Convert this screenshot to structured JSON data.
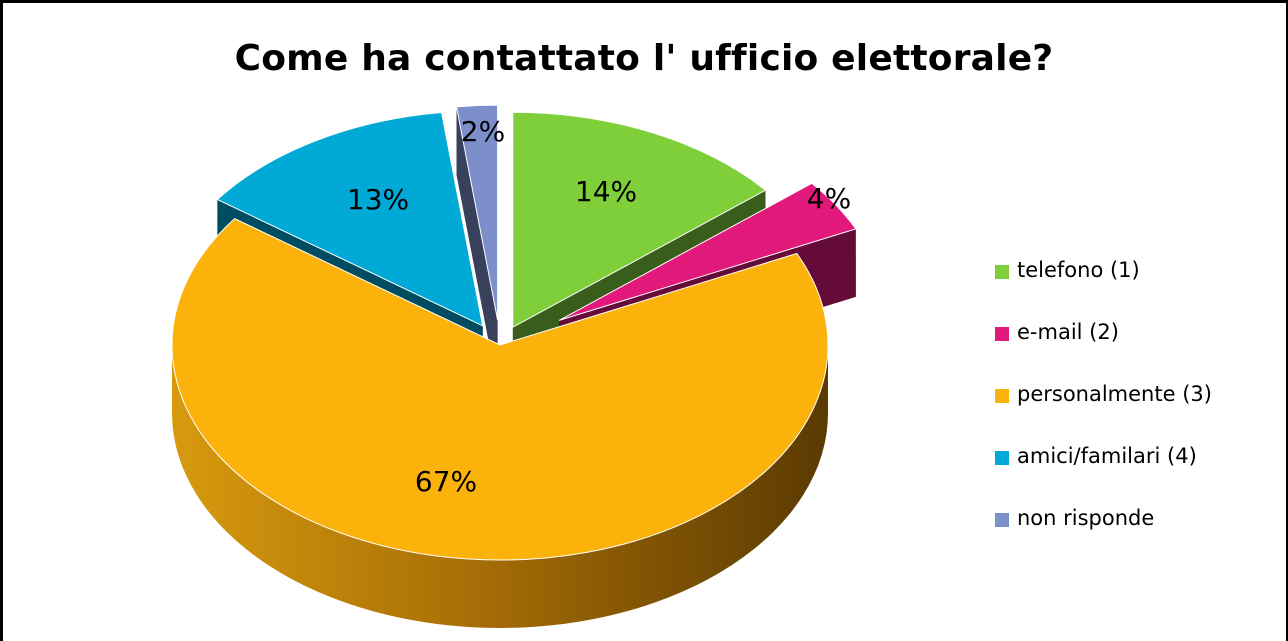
{
  "chart_data": {
    "type": "pie",
    "title": "Come ha contattato l' ufficio elettorale?",
    "categories": [
      "telefono (1)",
      "e-mail (2)",
      "personalmente (3)",
      "amici/familari (4)",
      "non risponde"
    ],
    "values": [
      14,
      4,
      67,
      13,
      2
    ],
    "value_labels": [
      "14%",
      "4%",
      "67%",
      "13%",
      "2%"
    ],
    "colors": [
      "#7ecf3a",
      "#e0197a",
      "#fbb20b",
      "#00a9d6",
      "#7d8fcb"
    ],
    "exploded": true,
    "three_d": true,
    "legend_position": "right"
  }
}
